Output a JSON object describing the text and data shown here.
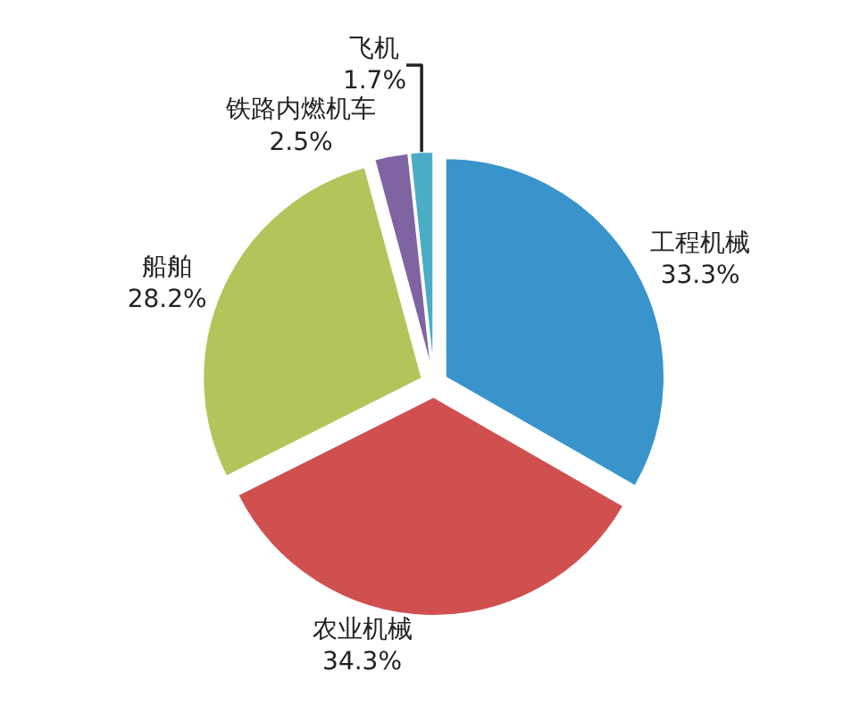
{
  "chart_data": {
    "type": "pie",
    "categories": [
      "工程机械",
      "农业机械",
      "船舶",
      "铁路内燃机车",
      "飞机"
    ],
    "values": [
      33.3,
      34.3,
      28.2,
      2.5,
      1.7
    ],
    "value_labels": [
      "33.3%",
      "34.3%",
      "28.2%",
      "2.5%",
      "1.7%"
    ],
    "colors": [
      "#3a94cc",
      "#d05050",
      "#b5c45a",
      "#8064a2",
      "#4bacc6"
    ],
    "legend": false
  }
}
